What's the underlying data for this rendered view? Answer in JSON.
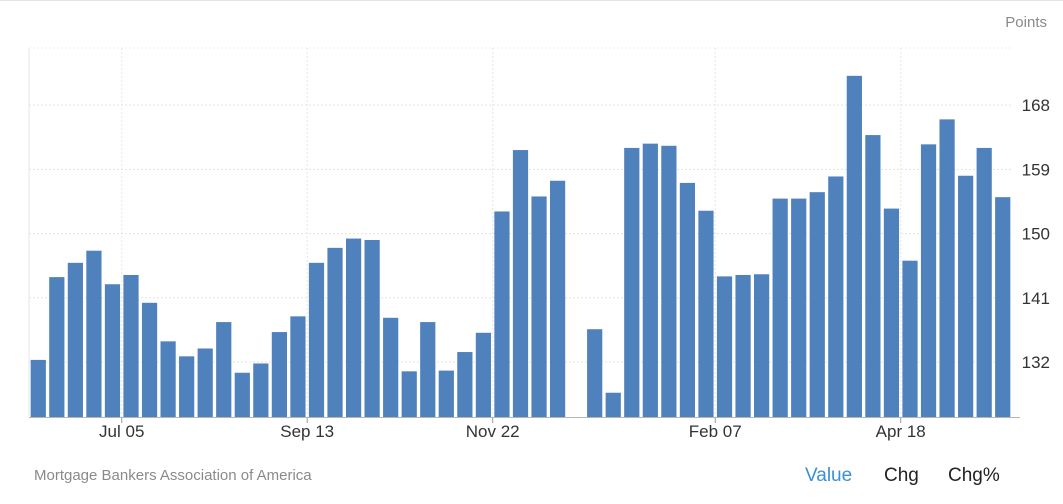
{
  "chart_data": {
    "type": "bar",
    "unit_label": "Points",
    "y_ticks": [
      132,
      141,
      150,
      159,
      168
    ],
    "ylim": [
      124.3,
      176
    ],
    "x_tick_labels": [
      "Jul 05",
      "Sep 13",
      "Nov 22",
      "Feb 07",
      "Apr 18"
    ],
    "x_tick_bar_index": [
      4.5,
      14.5,
      24.5,
      36.5,
      46.5
    ],
    "values": [
      132.3,
      143.9,
      145.9,
      147.6,
      142.9,
      144.2,
      140.3,
      134.9,
      132.8,
      133.9,
      137.6,
      130.5,
      131.8,
      136.2,
      138.4,
      145.9,
      148.0,
      149.3,
      149.1,
      138.2,
      130.7,
      137.6,
      130.8,
      133.4,
      136.1,
      153.1,
      161.7,
      155.2,
      157.4,
      null,
      136.6,
      127.7,
      162.0,
      162.6,
      162.3,
      157.1,
      153.2,
      144.0,
      144.2,
      144.3,
      154.9,
      154.9,
      155.8,
      158.0,
      172.1,
      163.8,
      153.5,
      146.2,
      162.5,
      166.0,
      158.1,
      162.0,
      155.1
    ],
    "bar_color": "#4f81bd",
    "grid": true,
    "source": "Mortgage Bankers Association of America"
  },
  "toggles": {
    "value": "Value",
    "chg": "Chg",
    "chg_pct": "Chg%"
  },
  "colors": {
    "active_toggle": "#3a8fd6",
    "bar": "#4f81bd"
  }
}
